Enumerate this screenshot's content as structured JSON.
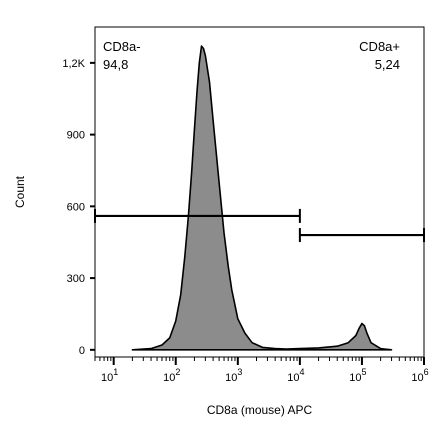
{
  "chart_data": {
    "type": "area",
    "xlabel": "CD8a (mouse) APC",
    "ylabel": "Count",
    "x_scale": "log",
    "xlim": [
      5,
      1000000
    ],
    "ylim": [
      -30,
      1350
    ],
    "y_ticks": [
      {
        "value": 0,
        "label": "0"
      },
      {
        "value": 300,
        "label": "300"
      },
      {
        "value": 600,
        "label": "600"
      },
      {
        "value": 900,
        "label": "900"
      },
      {
        "value": 1200,
        "label": "1,2K"
      }
    ],
    "x_ticks": [
      {
        "value": 10,
        "base": "10",
        "exp": "1"
      },
      {
        "value": 100,
        "base": "10",
        "exp": "2"
      },
      {
        "value": 1000,
        "base": "10",
        "exp": "3"
      },
      {
        "value": 10000,
        "base": "10",
        "exp": "4"
      },
      {
        "value": 100000,
        "base": "10",
        "exp": "5"
      },
      {
        "value": 1000000,
        "base": "10",
        "exp": "6"
      }
    ],
    "fill_color": "#8c8c8c",
    "line_color": "#000000",
    "histogram": {
      "x": [
        20,
        40,
        60,
        80,
        100,
        120,
        140,
        160,
        180,
        200,
        220,
        240,
        260,
        280,
        300,
        350,
        400,
        500,
        600,
        700,
        800,
        1000,
        1300,
        1700,
        2500,
        4000,
        6000,
        10000,
        20000,
        40000,
        60000,
        80000,
        90000,
        100000,
        110000,
        120000,
        140000,
        200000,
        300000
      ],
      "y": [
        0,
        5,
        20,
        50,
        120,
        230,
        390,
        560,
        740,
        920,
        1080,
        1200,
        1270,
        1260,
        1230,
        1120,
        960,
        700,
        490,
        350,
        250,
        130,
        70,
        30,
        10,
        5,
        3,
        5,
        8,
        15,
        30,
        60,
        90,
        110,
        100,
        70,
        30,
        5,
        0
      ]
    },
    "gates": [
      {
        "name": "CD8a-",
        "percent": "94,8",
        "x_range": [
          5,
          10000
        ],
        "y": 560,
        "label_position": "top-left"
      },
      {
        "name": "CD8a+",
        "percent": "5,24",
        "x_range": [
          10000,
          1000000
        ],
        "y": 480,
        "label_position": "top-right"
      }
    ]
  }
}
